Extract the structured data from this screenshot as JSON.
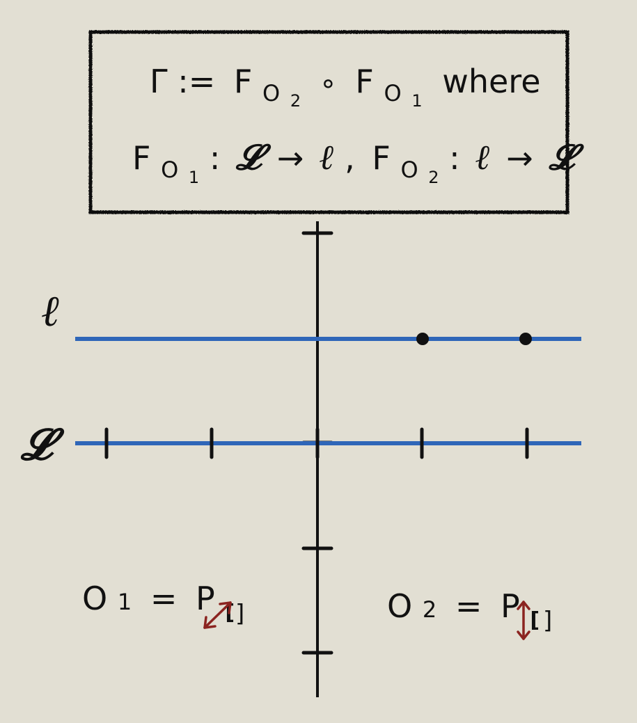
{
  "colors": {
    "background": "#e2dfd3",
    "line": "#2f66b8",
    "axis": "#111111",
    "arrow": "#8b2420"
  },
  "box": {
    "line1": {
      "lhs": "Γ :=",
      "f": "F",
      "sub_o": "O",
      "sub_2": "2",
      "compose": "∘",
      "sub_1": "1",
      "where": "where"
    },
    "line2": {
      "f": "F",
      "sub_o": "O",
      "sub_1": "1",
      "sub_2": "2",
      "colon": ":",
      "big_l": "𝓛",
      "small_l": "ℓ",
      "arrow": "→",
      "comma": ","
    }
  },
  "lines": {
    "upper_label": "ℓ",
    "lower_label": "𝓛"
  },
  "operators": {
    "o1": {
      "label": "O",
      "sub": "1",
      "eq": "=",
      "p": "P",
      "open": "[",
      "close": "]",
      "arrow_icon": "diagonal-double-arrow"
    },
    "o2": {
      "label": "O",
      "sub": "2",
      "eq": "=",
      "p": "P",
      "open": "[",
      "close": "]",
      "arrow_icon": "vertical-double-arrow"
    }
  }
}
